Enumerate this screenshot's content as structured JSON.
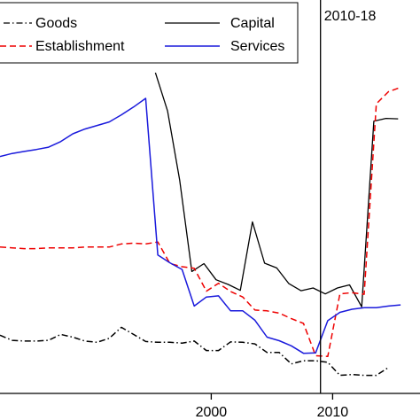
{
  "chart_data": {
    "type": "line",
    "xlim": [
      1982.6,
      2017.2
    ],
    "ylim": [
      0,
      1
    ],
    "xticks": [
      2000,
      2010
    ],
    "xtick_labels": [
      "2000",
      "2010"
    ],
    "grid": false,
    "legend_position": "top",
    "annotations": [
      {
        "label": "2010-18",
        "x": 2009
      }
    ],
    "series": [
      {
        "name": "Goods",
        "color": "#000000",
        "style": "dash-dot",
        "x": [
          1982.6,
          1983.6,
          1984.6,
          1985.6,
          1986.6,
          1987.6,
          1988.6,
          1989.6,
          1990.6,
          1991.6,
          1992.6,
          1993.6,
          1994.6,
          1995.6,
          1996.6,
          1997.6,
          1998.6,
          1999.6,
          2000.6,
          2001.6,
          2002.6,
          2003.6,
          2004.6,
          2005.6,
          2006.6,
          2007.6,
          2008.6,
          2009.6,
          2010.6,
          2011.6,
          2012.6,
          2013.6,
          2014.6
        ],
        "y": [
          0.148,
          0.135,
          0.133,
          0.133,
          0.135,
          0.15,
          0.143,
          0.133,
          0.13,
          0.14,
          0.168,
          0.15,
          0.132,
          0.13,
          0.13,
          0.128,
          0.133,
          0.109,
          0.109,
          0.131,
          0.13,
          0.126,
          0.104,
          0.104,
          0.075,
          0.083,
          0.083,
          0.079,
          0.046,
          0.048,
          0.046,
          0.046,
          0.066
        ]
      },
      {
        "name": "Capital",
        "color": "#000000",
        "style": "solid",
        "x": [
          1995.4,
          1996.4,
          1997.4,
          1998.4,
          1999.4,
          2000.4,
          2001.4,
          2002.4,
          2003.4,
          2004.4,
          2005.4,
          2006.4,
          2007.4,
          2008.4,
          2009.4,
          2010.4,
          2011.4,
          2012.4,
          2013.4,
          2014.4,
          2015.4
        ],
        "y": [
          0.815,
          0.718,
          0.542,
          0.31,
          0.33,
          0.289,
          0.277,
          0.262,
          0.436,
          0.331,
          0.319,
          0.279,
          0.261,
          0.268,
          0.253,
          0.268,
          0.276,
          0.22,
          0.692,
          0.699,
          0.698
        ]
      },
      {
        "name": "Establishment",
        "color": "#ee0000",
        "style": "dashed",
        "x": [
          1982.6,
          1983.6,
          1984.6,
          1985.6,
          1986.6,
          1987.6,
          1988.6,
          1989.6,
          1990.6,
          1991.6,
          1992.6,
          1993.6,
          1994.6,
          1995.6,
          1996.6,
          1997.6,
          1998.6,
          1999.6,
          2000.6,
          2001.6,
          2002.6,
          2003.6,
          2004.6,
          2005.6,
          2006.6,
          2007.6,
          2008.6,
          2009.6,
          2010.6,
          2011.6,
          2012.6,
          2013.6,
          2014.6,
          2015.6
        ],
        "y": [
          0.372,
          0.37,
          0.368,
          0.368,
          0.37,
          0.37,
          0.37,
          0.372,
          0.372,
          0.372,
          0.38,
          0.382,
          0.38,
          0.385,
          0.33,
          0.322,
          0.318,
          0.26,
          0.28,
          0.259,
          0.245,
          0.212,
          0.21,
          0.204,
          0.19,
          0.178,
          0.096,
          0.094,
          0.253,
          0.256,
          0.252,
          0.736,
          0.767,
          0.778
        ]
      },
      {
        "name": "Services",
        "color": "#1a1adc",
        "style": "solid",
        "x": [
          1982.6,
          1983.6,
          1984.6,
          1985.6,
          1986.6,
          1987.6,
          1988.6,
          1989.6,
          1990.6,
          1991.6,
          1992.6,
          1993.6,
          1994.6,
          1995.6,
          1996.6,
          1997.6,
          1998.6,
          1999.6,
          2000.6,
          2001.6,
          2002.6,
          2003.6,
          2004.6,
          2005.6,
          2006.6,
          2007.6,
          2008.6,
          2009.6,
          2010.6,
          2011.6,
          2012.6,
          2013.6,
          2014.6,
          2015.6
        ],
        "y": [
          0.602,
          0.61,
          0.615,
          0.62,
          0.626,
          0.64,
          0.66,
          0.672,
          0.681,
          0.69,
          0.708,
          0.728,
          0.75,
          0.352,
          0.332,
          0.315,
          0.222,
          0.245,
          0.248,
          0.21,
          0.21,
          0.186,
          0.143,
          0.134,
          0.121,
          0.102,
          0.103,
          0.185,
          0.206,
          0.214,
          0.218,
          0.218,
          0.222,
          0.225
        ]
      }
    ]
  }
}
